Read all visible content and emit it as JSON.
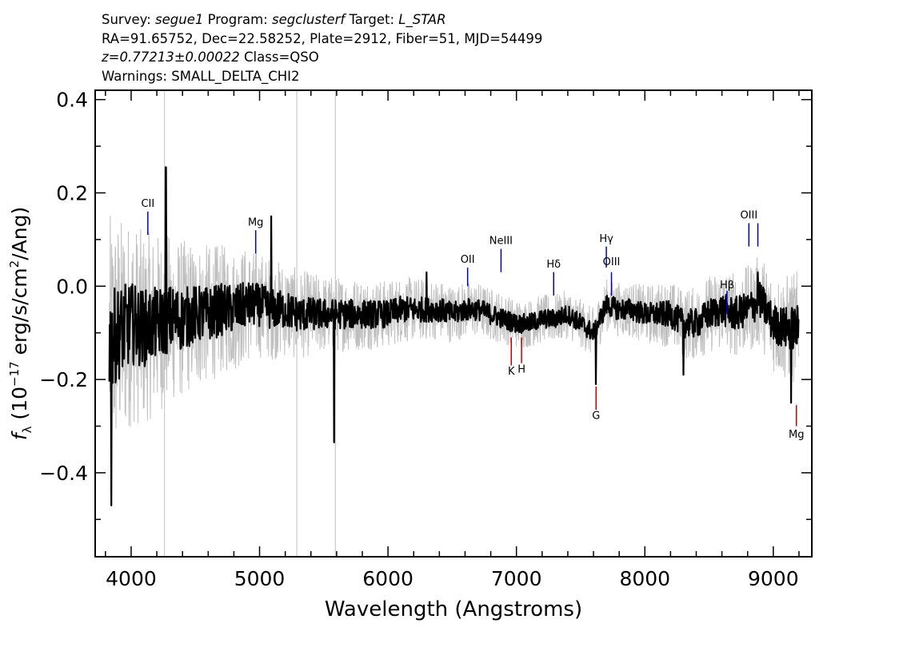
{
  "header": {
    "survey_label": "Survey:",
    "survey": "segue1",
    "program_label": "Program:",
    "program": "segclusterf",
    "target_label": "Target:",
    "target": "L_STAR",
    "line2": "RA=91.65752, Dec=22.58252, Plate=2912, Fiber=51, MJD=54499",
    "redshift": "z=0.77213±0.00022",
    "class": "Class=QSO",
    "warnings": "Warnings: SMALL_DELTA_CHI2"
  },
  "chart_data": {
    "type": "line",
    "xlabel": "Wavelength (Angstroms)",
    "ylabel": "f_λ (10^-17 erg/s/cm²/Ang)",
    "xlim": [
      3720,
      9300
    ],
    "ylim": [
      -0.58,
      0.42
    ],
    "x_ticks": [
      4000,
      5000,
      6000,
      7000,
      8000,
      9000
    ],
    "y_ticks": [
      0.4,
      0.2,
      0.0,
      -0.2,
      -0.4
    ],
    "y_tick_labels": [
      "0.4",
      "0.2",
      "0.0",
      "−0.2",
      "−0.4"
    ],
    "series": [
      {
        "color": "#000000",
        "x": [
          3830,
          3900,
          4000,
          4100,
          4200,
          4300,
          4400,
          4500,
          4600,
          4700,
          4800,
          4900,
          5000,
          5100,
          5200,
          5300,
          5400,
          5500,
          5600,
          5700,
          5800,
          5900,
          6000,
          6100,
          6200,
          6300,
          6400,
          6500,
          6600,
          6700,
          6800,
          6900,
          7000,
          7100,
          7200,
          7300,
          7400,
          7500,
          7600,
          7700,
          7800,
          7900,
          8000,
          8100,
          8200,
          8300,
          8400,
          8500,
          8600,
          8700,
          8800,
          8900,
          9000,
          9100,
          9200
        ],
        "y": [
          -0.12,
          -0.1,
          -0.08,
          -0.09,
          -0.08,
          -0.07,
          -0.07,
          -0.06,
          -0.06,
          -0.05,
          -0.05,
          -0.04,
          -0.04,
          -0.05,
          -0.05,
          -0.06,
          -0.06,
          -0.06,
          -0.06,
          -0.06,
          -0.06,
          -0.06,
          -0.06,
          -0.05,
          -0.05,
          -0.05,
          -0.05,
          -0.06,
          -0.05,
          -0.05,
          -0.06,
          -0.07,
          -0.08,
          -0.08,
          -0.07,
          -0.07,
          -0.06,
          -0.08,
          -0.1,
          -0.04,
          -0.05,
          -0.05,
          -0.06,
          -0.06,
          -0.06,
          -0.08,
          -0.08,
          -0.06,
          -0.05,
          -0.06,
          -0.05,
          -0.03,
          -0.08,
          -0.09,
          -0.09
        ]
      },
      {
        "color": "#c0c0c0",
        "kind": "error_band",
        "x": [
          3830,
          4000,
          4500,
          5000,
          5500,
          6000,
          6500,
          7000,
          7500,
          8000,
          8500,
          8800,
          9000,
          9200
        ],
        "sigma": [
          0.26,
          0.21,
          0.15,
          0.11,
          0.08,
          0.07,
          0.06,
          0.05,
          0.05,
          0.06,
          0.08,
          0.09,
          0.1,
          0.12
        ]
      }
    ],
    "spikes": [
      {
        "x": 3845,
        "y": -0.47
      },
      {
        "x": 4270,
        "y": 0.255
      },
      {
        "x": 5090,
        "y": 0.15
      },
      {
        "x": 5580,
        "y": -0.335
      },
      {
        "x": 6300,
        "y": 0.03
      },
      {
        "x": 7620,
        "y": -0.21
      },
      {
        "x": 8300,
        "y": -0.19
      },
      {
        "x": 8880,
        "y": 0.03
      },
      {
        "x": 9140,
        "y": -0.25
      }
    ],
    "vertical_lines": [
      4260,
      5290,
      5590
    ],
    "line_markers": [
      {
        "label": "CII",
        "x": 4130,
        "y0": 0.11,
        "y1": 0.16,
        "label_y": 0.17,
        "color": "#0000cc"
      },
      {
        "label": "Mg",
        "x": 4970,
        "y0": 0.07,
        "y1": 0.12,
        "label_y": 0.13,
        "color": "#0000cc"
      },
      {
        "label": "OII",
        "x": 6620,
        "y0": 0.0,
        "y1": 0.04,
        "label_y": 0.05,
        "color": "#0000cc"
      },
      {
        "label": "NeIII",
        "x": 6880,
        "y0": 0.03,
        "y1": 0.08,
        "label_y": 0.09,
        "color": "#0000cc"
      },
      {
        "label": "Hδ",
        "x": 7290,
        "y0": -0.02,
        "y1": 0.03,
        "label_y": 0.04,
        "color": "#0000cc"
      },
      {
        "label": "Hγ",
        "x": 7700,
        "y0": 0.04,
        "y1": 0.085,
        "label_y": 0.095,
        "color": "#0000cc"
      },
      {
        "label": "OIII",
        "x": 7740,
        "y0": -0.02,
        "y1": 0.03,
        "label_y": 0.045,
        "color": "#0000cc"
      },
      {
        "label": "Hβ",
        "x": 8640,
        "y0": -0.06,
        "y1": -0.01,
        "label_y": -0.005,
        "color": "#0000cc"
      },
      {
        "label": "OIII",
        "x": 8810,
        "y0": 0.085,
        "y1": 0.135,
        "label_y": 0.145,
        "color": "#0000cc"
      },
      {
        "label": "OIII",
        "x": 8880,
        "y0": 0.085,
        "y1": 0.135,
        "label_y": -1,
        "color": "#0000cc"
      },
      {
        "label": "K",
        "x": 6960,
        "y0": -0.17,
        "y1": -0.11,
        "label_y": -0.19,
        "color": "#cc0000"
      },
      {
        "label": "H",
        "x": 7040,
        "y0": -0.165,
        "y1": -0.11,
        "label_y": -0.185,
        "color": "#cc0000"
      },
      {
        "label": "G",
        "x": 7620,
        "y0": -0.265,
        "y1": -0.215,
        "label_y": -0.285,
        "color": "#cc0000"
      },
      {
        "label": "Mg",
        "x": 9180,
        "y0": -0.3,
        "y1": -0.255,
        "label_y": -0.325,
        "color": "#cc0000"
      }
    ]
  }
}
